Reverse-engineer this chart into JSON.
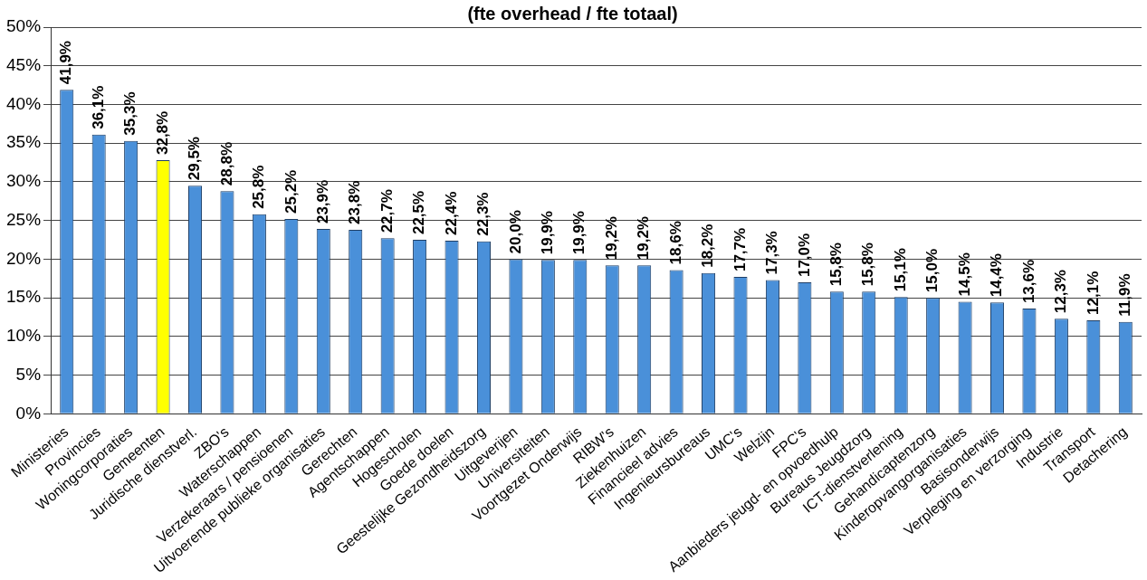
{
  "chart_data": {
    "type": "bar",
    "subtitle": "(fte overhead / fte totaal)",
    "categories": [
      "Ministeries",
      "Provincies",
      "Woningcorporaties",
      "Gemeenten",
      "Juridische dienstverl.",
      "ZBO's",
      "Waterschappen",
      "Verzekeraars / pensioenen",
      "Uitvoerende publieke organisaties",
      "Gerechten",
      "Agentschappen",
      "Hogescholen",
      "Goede doelen",
      "Geestelijke Gezondheidszorg",
      "Uitgeverijen",
      "Universiteiten",
      "Voortgezet Onderwijs",
      "RIBW's",
      "Ziekenhuizen",
      "Financieel advies",
      "Ingenieursbureaus",
      "UMC's",
      "Welzijn",
      "FPC's",
      "Aanbieders jeugd- en opvoedhulp",
      "Bureaus Jeugdzorg",
      "ICT-dienstverlening",
      "Gehandicaptenzorg",
      "Kinderopvangorganisaties",
      "Basisonderwijs",
      "Verpleging en verzorging",
      "Industrie",
      "Transport",
      "Detachering"
    ],
    "values": [
      41.9,
      36.1,
      35.3,
      32.8,
      29.5,
      28.8,
      25.8,
      25.2,
      23.9,
      23.8,
      22.7,
      22.5,
      22.4,
      22.3,
      20.0,
      19.9,
      19.9,
      19.2,
      19.2,
      18.6,
      18.2,
      17.7,
      17.3,
      17.0,
      15.8,
      15.8,
      15.1,
      15.0,
      14.5,
      14.4,
      13.6,
      12.3,
      12.1,
      11.9
    ],
    "value_labels": [
      "41,9%",
      "36,1%",
      "35,3%",
      "32,8%",
      "29,5%",
      "28,8%",
      "25,8%",
      "25,2%",
      "23,9%",
      "23,8%",
      "22,7%",
      "22,5%",
      "22,4%",
      "22,3%",
      "20,0%",
      "19,9%",
      "19,9%",
      "19,2%",
      "19,2%",
      "18,6%",
      "18,2%",
      "17,7%",
      "17,3%",
      "17,0%",
      "15,8%",
      "15,8%",
      "15,1%",
      "15,0%",
      "14,5%",
      "14,4%",
      "13,6%",
      "12,3%",
      "12,1%",
      "11,9%"
    ],
    "colors": [
      "#4a90d9",
      "#4a90d9",
      "#4a90d9",
      "#ffff00",
      "#4a90d9",
      "#4a90d9",
      "#4a90d9",
      "#4a90d9",
      "#4a90d9",
      "#4a90d9",
      "#4a90d9",
      "#4a90d9",
      "#4a90d9",
      "#4a90d9",
      "#4a90d9",
      "#4a90d9",
      "#4a90d9",
      "#4a90d9",
      "#4a90d9",
      "#4a90d9",
      "#4a90d9",
      "#4a90d9",
      "#4a90d9",
      "#4a90d9",
      "#4a90d9",
      "#4a90d9",
      "#4a90d9",
      "#4a90d9",
      "#4a90d9",
      "#4a90d9",
      "#4a90d9",
      "#4a90d9",
      "#4a90d9",
      "#4a90d9"
    ],
    "ylim": [
      0,
      50
    ],
    "yticks": [
      {
        "value": 0,
        "label": "0%"
      },
      {
        "value": 5,
        "label": "5%"
      },
      {
        "value": 10,
        "label": "10%"
      },
      {
        "value": 15,
        "label": "15%"
      },
      {
        "value": 20,
        "label": "20%"
      },
      {
        "value": 25,
        "label": "25%"
      },
      {
        "value": 30,
        "label": "30%"
      },
      {
        "value": 35,
        "label": "35%"
      },
      {
        "value": 40,
        "label": "40%"
      },
      {
        "value": 45,
        "label": "45%"
      },
      {
        "value": 50,
        "label": "50%"
      }
    ],
    "grid": "y",
    "legend": false
  }
}
